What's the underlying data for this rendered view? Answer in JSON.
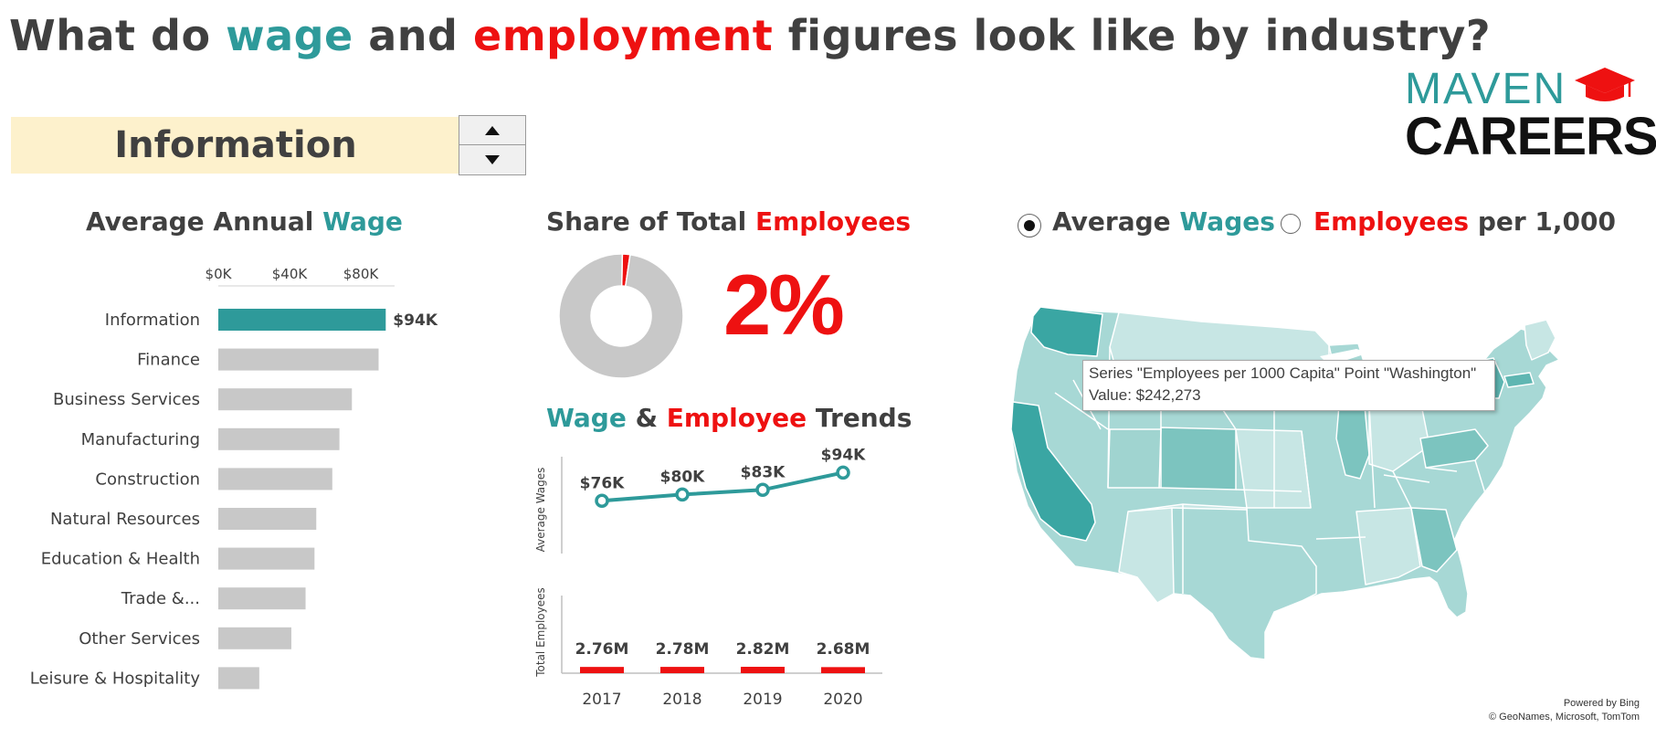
{
  "header": {
    "title_parts": [
      "What do ",
      "wage",
      " and ",
      "employment",
      " figures look like by industry?"
    ]
  },
  "logo": {
    "line1": "MAVEN",
    "line2": "CAREERS"
  },
  "selector": {
    "value": "Information",
    "spin_up_icon": "triangle-up-icon",
    "spin_down_icon": "triangle-down-icon"
  },
  "wage_panel": {
    "title_parts": [
      "Average Annual ",
      "Wage"
    ]
  },
  "share_panel": {
    "title_parts": [
      "Share of Total ",
      "Employees"
    ],
    "value_text": "2%"
  },
  "trends_panel": {
    "title_parts": [
      "Wage",
      " & ",
      "Employee",
      " Trends"
    ]
  },
  "map_panel": {
    "options": [
      {
        "parts": [
          "Average ",
          "Wages"
        ],
        "selected": true
      },
      {
        "parts": [
          "Employees",
          " per 1,000"
        ],
        "selected": false
      }
    ],
    "tooltip_line1": "Series \"Employees per 1000 Capita\" Point \"Washington\"",
    "tooltip_line2": "Value: $242,273",
    "attribution_line1": "Powered by Bing",
    "attribution_line2": "© GeoNames, Microsoft, TomTom"
  },
  "colors": {
    "teal": "#2e9a9a",
    "red": "#ee1111",
    "gray": "#c8c8c8",
    "text": "#404040"
  },
  "chart_data": [
    {
      "type": "bar",
      "orientation": "horizontal",
      "title": "Average Annual Wage",
      "categories": [
        "Information",
        "Finance",
        "Business Services",
        "Manufacturing",
        "Construction",
        "Natural Resources",
        "Education & Health",
        "Trade &...",
        "Other Services",
        "Leisure & Hospitality"
      ],
      "values": [
        94,
        90,
        75,
        68,
        64,
        55,
        54,
        49,
        41,
        23
      ],
      "highlight_index": 0,
      "data_labels": [
        "$94K",
        "",
        "",
        "",
        "",
        "",
        "",
        "",
        "",
        ""
      ],
      "ticks": [
        "$0K",
        "$40K",
        "$80K"
      ],
      "tick_values": [
        0,
        40,
        80
      ],
      "xlim": [
        0,
        100
      ],
      "unit": "$K"
    },
    {
      "type": "pie",
      "variant": "donut",
      "title": "Share of Total Employees",
      "values": [
        2,
        98
      ],
      "colors": [
        "#ee1111",
        "#c8c8c8"
      ]
    },
    {
      "type": "line",
      "title": "Wage & Employee Trends",
      "ylabel": "Average  Wages",
      "x": [
        "2017",
        "2018",
        "2019",
        "2020"
      ],
      "values": [
        76,
        80,
        83,
        94
      ],
      "data_labels": [
        "$76K",
        "$80K",
        "$83K",
        "$94K"
      ],
      "ylim": [
        40,
        110
      ]
    },
    {
      "type": "bar",
      "ylabel": "Total Employees",
      "x": [
        "2017",
        "2018",
        "2019",
        "2020"
      ],
      "values": [
        2.76,
        2.78,
        2.82,
        2.68
      ],
      "data_labels": [
        "2.76M",
        "2.78M",
        "2.82M",
        "2.68M"
      ]
    }
  ]
}
